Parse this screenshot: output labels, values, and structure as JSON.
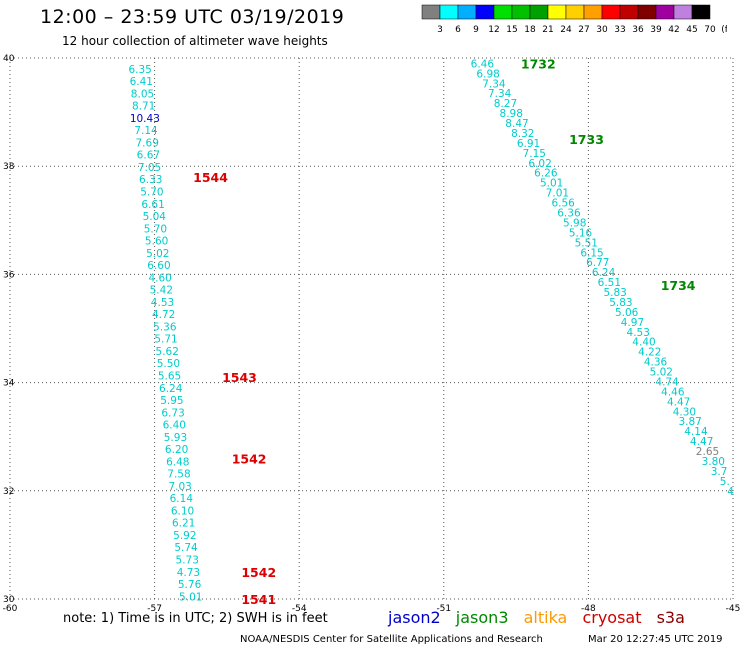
{
  "title": "12:00 – 23:59 UTC 03/19/2019",
  "subtitle": "12 hour collection of altimeter wave heights",
  "colorbar": {
    "labels": [
      "3",
      "6",
      "9",
      "12",
      "15",
      "18",
      "21",
      "24",
      "27",
      "30",
      "33",
      "36",
      "39",
      "42",
      "45",
      "70",
      "(ft)"
    ],
    "colors": [
      "#808080",
      "#00ffff",
      "#00b0ff",
      "#0000ff",
      "#00e000",
      "#00c000",
      "#00a000",
      "#ffff00",
      "#ffd000",
      "#ffa000",
      "#ff0000",
      "#c00000",
      "#800000",
      "#a000a0",
      "#c080e0",
      "#000000"
    ]
  },
  "note": "note:  1) Time is in UTC;  2) SWH is in feet",
  "satellites": [
    {
      "label": "jason2",
      "color": "#0000cc"
    },
    {
      "label": "jason3",
      "color": "#008800"
    },
    {
      "label": "altika",
      "color": "#ff9900"
    },
    {
      "label": "cryosat",
      "color": "#cc0000"
    },
    {
      "label": "s3a",
      "color": "#880000"
    }
  ],
  "footer": {
    "credit": "NOAA/NESDIS Center for Satellite Applications and Research",
    "timestamp": "Mar 20 12:27:45 UTC 2019"
  },
  "chart_data": {
    "type": "scatter",
    "xlim": [
      -60,
      -45
    ],
    "ylim": [
      30,
      40
    ],
    "x_ticks": [
      "-60",
      "-57",
      "-54",
      "-51",
      "-48",
      "-45"
    ],
    "y_ticks": [
      "30",
      "32",
      "34",
      "36",
      "38",
      "40"
    ],
    "grid": true,
    "tracks": [
      {
        "color": "#00cccc",
        "lat_start": 39.8,
        "lat_end": 30.05,
        "lon_start": -57.3,
        "lon_end": -56.25,
        "values": [
          "6.35",
          "6.41",
          "8.05",
          "8.71",
          "10.43",
          "7.14",
          "7.69",
          "6.67",
          "7.05",
          "6.33",
          "5.70",
          "6.61",
          "5.04",
          "5.70",
          "5.60",
          "5.02",
          "6.60",
          "4.60",
          "5.42",
          "4.53",
          "4.72",
          "5.36",
          "5.71",
          "5.62",
          "5.50",
          "5.65",
          "6.24",
          "5.95",
          "6.73",
          "6.40",
          "5.93",
          "6.20",
          "6.48",
          "7.58",
          "7.03",
          "6.14",
          "6.10",
          "6.21",
          "5.92",
          "5.74",
          "5.73",
          "4.73",
          "5.76",
          "5.01"
        ],
        "value_colors": {
          "10.43": "#0000cc"
        }
      },
      {
        "color": "#00cccc",
        "lat_start": 39.9,
        "lat_end": 32.0,
        "lon_start": -50.2,
        "lon_end": -45.05,
        "values": [
          "6.46",
          "6.98",
          "7.34",
          "7.34",
          "8.27",
          "8.98",
          "8.47",
          "8.32",
          "6.91",
          "7.15",
          "6.02",
          "6.26",
          "5.01",
          "7.01",
          "6.56",
          "6.36",
          "5.98",
          "5.16",
          "5.51",
          "6.15",
          "6.77",
          "6.24",
          "6.51",
          "5.83",
          "5.83",
          "5.06",
          "4.97",
          "4.53",
          "4.40",
          "4.22",
          "4.36",
          "5.02",
          "4.74",
          "4.46",
          "4.47",
          "4.30",
          "3.87",
          "4.14",
          "4.47",
          "2.65",
          "3.80",
          "3.7",
          "5.",
          "4"
        ],
        "value_colors": {
          "2.65": "#808080"
        }
      }
    ],
    "time_labels": [
      {
        "text": "1732",
        "lat": 39.9,
        "lon": -49.4,
        "color": "#008800"
      },
      {
        "text": "1733",
        "lat": 38.5,
        "lon": -48.4,
        "color": "#008800"
      },
      {
        "text": "1734",
        "lat": 35.8,
        "lon": -46.5,
        "color": "#008800"
      },
      {
        "text": "1544",
        "lat": 37.8,
        "lon": -56.2,
        "color": "#dd0000"
      },
      {
        "text": "1543",
        "lat": 34.1,
        "lon": -55.6,
        "color": "#dd0000"
      },
      {
        "text": "1542",
        "lat": 32.6,
        "lon": -55.4,
        "color": "#dd0000"
      },
      {
        "text": "1542",
        "lat": 30.5,
        "lon": -55.2,
        "color": "#dd0000"
      },
      {
        "text": "1541",
        "lat": 30.0,
        "lon": -55.2,
        "color": "#dd0000"
      }
    ]
  }
}
